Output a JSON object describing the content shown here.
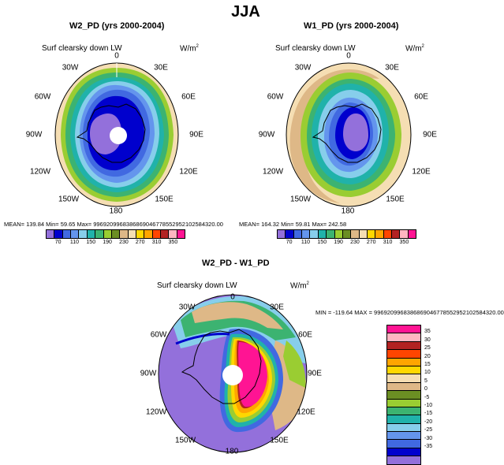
{
  "main_title": "JJA",
  "panels": {
    "left": {
      "title": "W2_PD (yrs 2000-2004)",
      "variable": "Surf clearsky down LW",
      "unit": "W/m",
      "unit_sup": "2",
      "stats": "MEAN= 139.84  Min=  59.65  Max= 9969209968386869046778552952102584320.00"
    },
    "right": {
      "title": "W1_PD (yrs 2000-2004)",
      "variable": "Surf clearsky down LW",
      "unit": "W/m",
      "unit_sup": "2",
      "stats": "MEAN= 164.32  Min=  59.81  Max= 242.58"
    },
    "bottom": {
      "title": "W2_PD - W1_PD",
      "variable": "Surf clearsky down LW",
      "unit": "W/m",
      "unit_sup": "2",
      "stats": "MIN = -119.64  MAX = 9969209968386869046778552952102584320.00"
    }
  },
  "lon_labels": {
    "l0": "0",
    "l30e": "30E",
    "l60e": "60E",
    "l90e": "90E",
    "l120e": "120E",
    "l150e": "150E",
    "l180": "180",
    "l150w": "150W",
    "l120w": "120W",
    "l90w": "90W",
    "l60w": "60W",
    "l30w": "30W"
  },
  "colorbar_top": {
    "colors": [
      "#9370db",
      "#0000cd",
      "#4169e1",
      "#6495ed",
      "#87ceeb",
      "#20b2aa",
      "#3cb371",
      "#9acd32",
      "#6b8e23",
      "#deb887",
      "#f5deb3",
      "#ffd700",
      "#ffa500",
      "#ff4500",
      "#b22222",
      "#ffb6c1",
      "#ff1493"
    ],
    "tick_labels": [
      "70",
      "110",
      "150",
      "190",
      "230",
      "270",
      "310",
      "350"
    ]
  },
  "colorbar_diff": {
    "colors": [
      "#ff1493",
      "#ffb6c1",
      "#b22222",
      "#ff4500",
      "#ffa500",
      "#ffd700",
      "#f5deb3",
      "#deb887",
      "#6b8e23",
      "#9acd32",
      "#3cb371",
      "#20b2aa",
      "#87ceeb",
      "#6495ed",
      "#4169e1",
      "#0000cd",
      "#9370db"
    ],
    "tick_labels": [
      "35",
      "30",
      "25",
      "20",
      "15",
      "10",
      "5",
      "0",
      "-5",
      "-10",
      "-15",
      "-20",
      "-25",
      "-30",
      "-35"
    ]
  },
  "map_colors": {
    "outer": "#f5deb3",
    "ring1": "#deb887",
    "ring2": "#9acd32",
    "ring3": "#3cb371",
    "ring4": "#20b2aa",
    "ring5": "#87ceeb",
    "ring6": "#6495ed",
    "ring7": "#4169e1",
    "ring8": "#0000cd",
    "core": "#9370db",
    "hot1": "#ff1493",
    "hot2": "#ffa500",
    "hot3": "#ffd700",
    "land": "#000000"
  }
}
